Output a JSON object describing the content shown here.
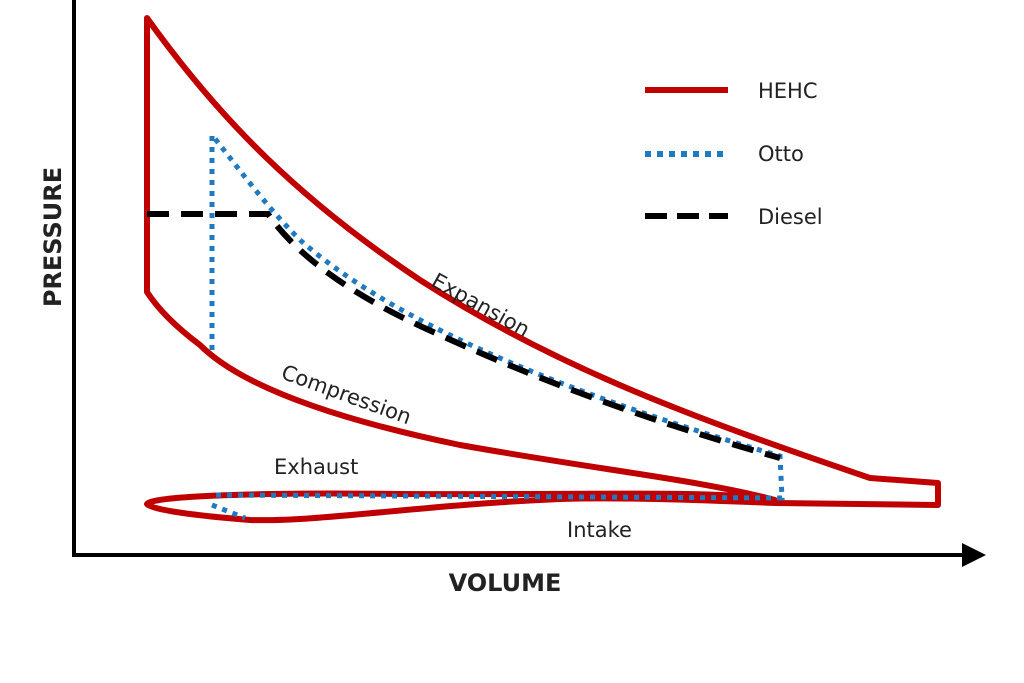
{
  "axes": {
    "x_label": "VOLUME",
    "y_label": "PRESSURE"
  },
  "legend": {
    "placement": "top-right",
    "items": [
      {
        "label": "HEHC",
        "color": "#c00000",
        "style": "solid"
      },
      {
        "label": "Otto",
        "color": "#1f7ac2",
        "style": "dotted"
      },
      {
        "label": "Diesel",
        "color": "#000000",
        "style": "dashed"
      }
    ]
  },
  "annotations": {
    "expansion": "Expansion",
    "compression": "Compression",
    "exhaust": "Exhaust",
    "intake": "Intake"
  }
}
